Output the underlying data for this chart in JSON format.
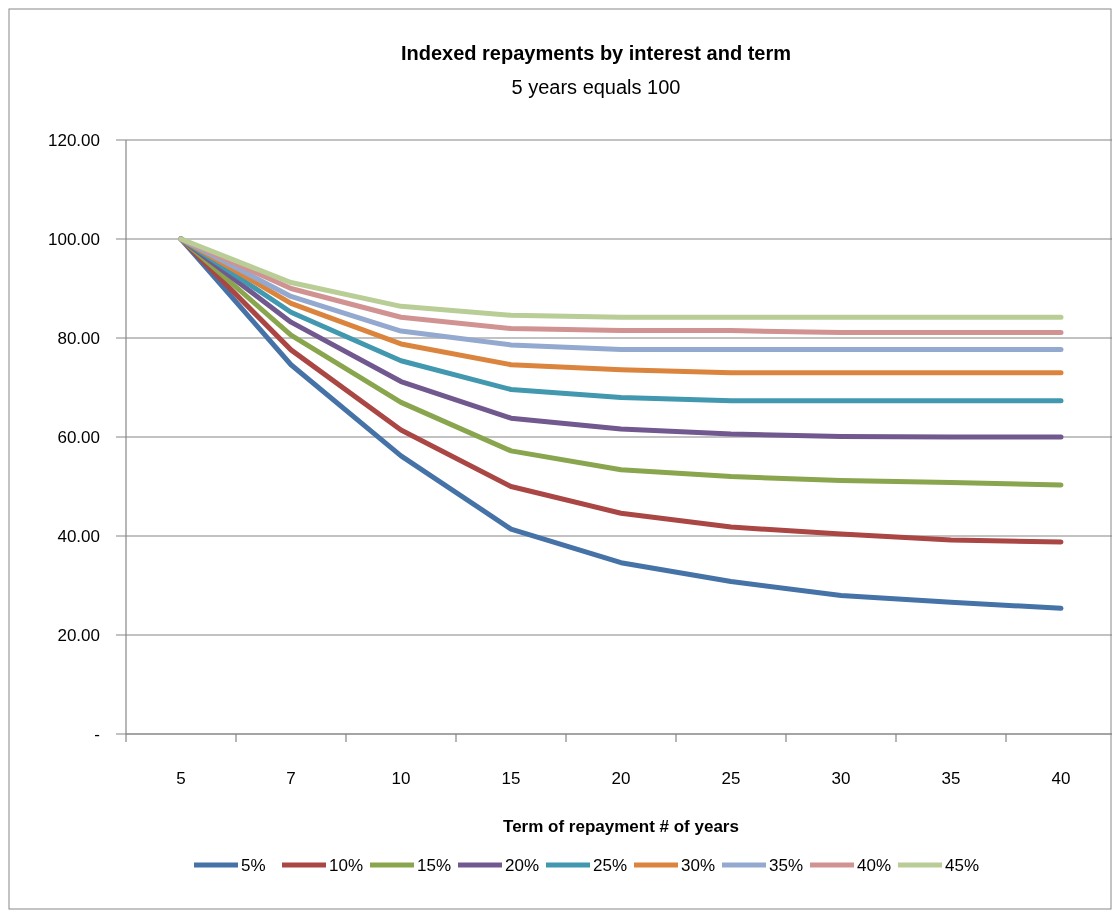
{
  "chart_data": {
    "type": "line",
    "title": "Indexed repayments by interest and term",
    "subtitle": "5 years equals 100",
    "xlabel": "Term of repayment # of years",
    "categories": [
      "5",
      "7",
      "10",
      "15",
      "20",
      "25",
      "30",
      "35",
      "40"
    ],
    "ylim": [
      0,
      120
    ],
    "yticks": [
      {
        "value": 0,
        "label": "-"
      },
      {
        "value": 20,
        "label": "20.00"
      },
      {
        "value": 40,
        "label": "40.00"
      },
      {
        "value": 60,
        "label": "60.00"
      },
      {
        "value": 80,
        "label": "80.00"
      },
      {
        "value": 100,
        "label": "100.00"
      },
      {
        "value": 120,
        "label": "120.00"
      }
    ],
    "grid": "y",
    "legend": "bottom",
    "marker": "none",
    "line_style": "solid",
    "series": [
      {
        "name": "5%",
        "color": "#4572a7",
        "values": [
          100,
          74.6,
          56.2,
          41.4,
          34.6,
          30.8,
          28,
          26.6,
          25.4
        ]
      },
      {
        "name": "10%",
        "color": "#aa4643",
        "values": [
          100,
          77.6,
          61.4,
          50,
          44.6,
          41.8,
          40.4,
          39.2,
          38.8
        ]
      },
      {
        "name": "15%",
        "color": "#89a54e",
        "values": [
          100,
          80.6,
          67,
          57.2,
          53.4,
          52,
          51.2,
          50.8,
          50.3
        ]
      },
      {
        "name": "20%",
        "color": "#71588f",
        "values": [
          100,
          83.2,
          71.2,
          63.8,
          61.6,
          60.6,
          60.1,
          60,
          60
        ]
      },
      {
        "name": "25%",
        "color": "#4198af",
        "values": [
          100,
          85.2,
          75.4,
          69.6,
          68,
          67.3,
          67.3,
          67.3,
          67.3
        ]
      },
      {
        "name": "30%",
        "color": "#db843d",
        "values": [
          100,
          87,
          78.8,
          74.6,
          73.6,
          73,
          73,
          73,
          73
        ]
      },
      {
        "name": "35%",
        "color": "#93a9cf",
        "values": [
          100,
          88.4,
          81.4,
          78.6,
          77.7,
          77.7,
          77.7,
          77.7,
          77.7
        ]
      },
      {
        "name": "40%",
        "color": "#d19392",
        "values": [
          100,
          90,
          84.2,
          81.9,
          81.5,
          81.5,
          81.1,
          81.1,
          81.1
        ]
      },
      {
        "name": "45%",
        "color": "#b9cd96",
        "values": [
          100,
          91.2,
          86.4,
          84.6,
          84.2,
          84.2,
          84.2,
          84.2,
          84.2
        ]
      }
    ]
  }
}
